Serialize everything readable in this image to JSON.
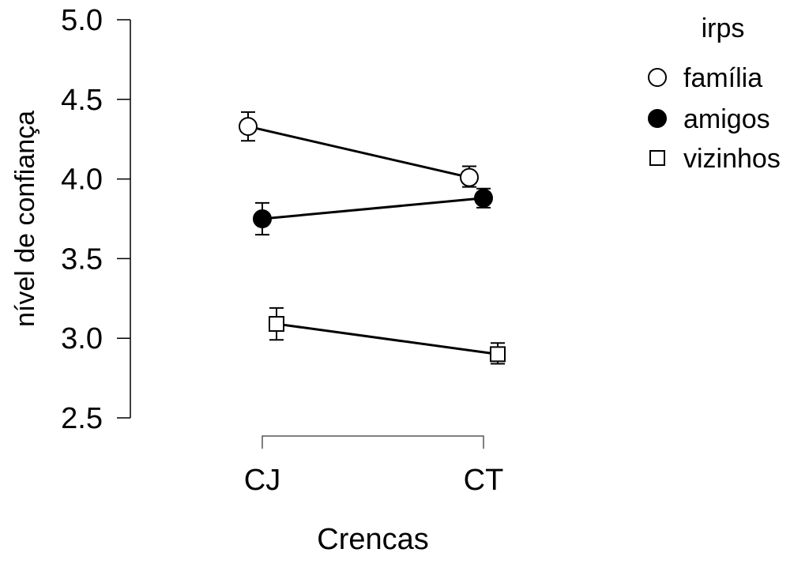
{
  "chart_data": {
    "type": "line",
    "xlabel": "Crencas",
    "ylabel": "nível de confiança",
    "categories": [
      "CJ",
      "CT"
    ],
    "ylim": [
      2.5,
      5.0
    ],
    "yticks": [
      "2.5",
      "3.0",
      "3.5",
      "4.0",
      "4.5",
      "5.0"
    ],
    "legend": {
      "title": "irps",
      "placement": "top-right"
    },
    "series": [
      {
        "name": "família",
        "marker": "circle-open",
        "values": [
          4.33,
          4.01
        ],
        "lower": [
          4.24,
          3.95
        ],
        "upper": [
          4.42,
          4.08
        ]
      },
      {
        "name": "amigos",
        "marker": "circle-filled",
        "values": [
          3.75,
          3.88
        ],
        "lower": [
          3.65,
          3.82
        ],
        "upper": [
          3.85,
          3.94
        ]
      },
      {
        "name": "vizinhos",
        "marker": "square-open",
        "values": [
          3.09,
          2.9
        ],
        "lower": [
          2.99,
          2.84
        ],
        "upper": [
          3.19,
          2.97
        ]
      }
    ],
    "colors": {
      "line": "#000000",
      "filled": "#000000",
      "open": "#ffffff"
    }
  }
}
